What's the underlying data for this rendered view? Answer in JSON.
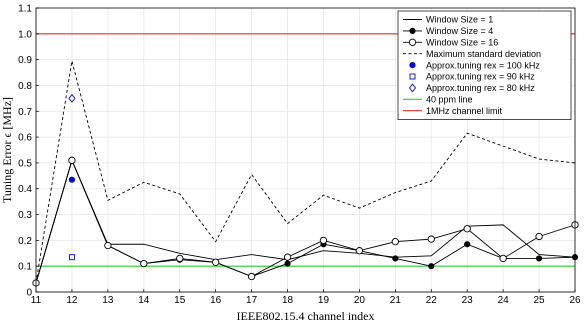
{
  "chart_data": {
    "type": "line",
    "xlabel": "IEEE802.15.4 channel index",
    "ylabel": "Tuning Error ϵ [MHz]",
    "xlim": [
      11,
      26
    ],
    "ylim": [
      0,
      1.1
    ],
    "x_ticks": [
      11,
      12,
      13,
      14,
      15,
      16,
      17,
      18,
      19,
      20,
      21,
      22,
      23,
      24,
      25,
      26
    ],
    "y_ticks": [
      "0",
      "0.1",
      "0.2",
      "0.3",
      "0.4",
      "0.5",
      "0.6",
      "0.7",
      "0.8",
      "0.9",
      "1.0",
      "1.1"
    ],
    "grid": "on",
    "legend_position": "top-right",
    "series": [
      {
        "name": "Window Size = 1",
        "style": "solid",
        "marker": "none",
        "color": "#000000",
        "x": [
          11,
          12,
          13,
          14,
          15,
          16,
          17,
          18,
          19,
          20,
          21,
          22,
          23,
          24,
          25,
          26
        ],
        "y": [
          0.035,
          0.51,
          0.185,
          0.185,
          0.15,
          0.125,
          0.145,
          0.125,
          0.16,
          0.15,
          0.135,
          0.14,
          0.255,
          0.26,
          0.145,
          0.135
        ]
      },
      {
        "name": "Window Size = 4",
        "style": "solid",
        "marker": "dot",
        "color": "#000000",
        "x": [
          11,
          12,
          13,
          14,
          15,
          16,
          17,
          18,
          19,
          20,
          21,
          22,
          23,
          24,
          25,
          26
        ],
        "y": [
          0.035,
          0.51,
          0.18,
          0.11,
          0.125,
          0.115,
          0.06,
          0.11,
          0.185,
          0.16,
          0.13,
          0.1,
          0.185,
          0.13,
          0.13,
          0.135
        ]
      },
      {
        "name": "Window Size = 16",
        "style": "solid",
        "marker": "circle",
        "color": "#000000",
        "x": [
          11,
          12,
          13,
          14,
          15,
          16,
          17,
          18,
          19,
          20,
          21,
          22,
          23,
          24,
          25,
          26
        ],
        "y": [
          0.035,
          0.51,
          0.18,
          0.11,
          0.13,
          0.115,
          0.06,
          0.135,
          0.2,
          0.16,
          0.195,
          0.205,
          0.245,
          0.13,
          0.215,
          0.26
        ]
      },
      {
        "name": "Maximum standard deviation",
        "style": "dashed",
        "marker": "none",
        "color": "#000000",
        "x": [
          11,
          12,
          13,
          14,
          15,
          16,
          17,
          18,
          19,
          20,
          21,
          22,
          23,
          24,
          25,
          26
        ],
        "y": [
          0.035,
          0.895,
          0.355,
          0.425,
          0.38,
          0.195,
          0.455,
          0.265,
          0.375,
          0.325,
          0.385,
          0.43,
          0.615,
          0.565,
          0.515,
          0.5
        ]
      },
      {
        "name": "Approx.tuning rex = 100 kHz",
        "style": "none",
        "marker": "filled-circle",
        "color": "#0000ff",
        "x": [
          12
        ],
        "y": [
          0.435
        ]
      },
      {
        "name": "Approx.tuning rex = 90 kHz",
        "style": "none",
        "marker": "square",
        "color": "#0000ff",
        "x": [
          12
        ],
        "y": [
          0.135
        ]
      },
      {
        "name": "Approx.tuning rex = 80 kHz",
        "style": "none",
        "marker": "diamond",
        "color": "#0000ff",
        "x": [
          12
        ],
        "y": [
          0.75
        ]
      },
      {
        "name": "40 ppm line",
        "style": "solid",
        "marker": "none",
        "color": "#33cc33",
        "x": [
          11,
          26
        ],
        "y": [
          0.1,
          0.1
        ]
      },
      {
        "name": "1MHz channel limit",
        "style": "solid",
        "marker": "none",
        "color": "#e03030",
        "x": [
          11,
          26
        ],
        "y": [
          1.0,
          1.0
        ]
      }
    ]
  }
}
